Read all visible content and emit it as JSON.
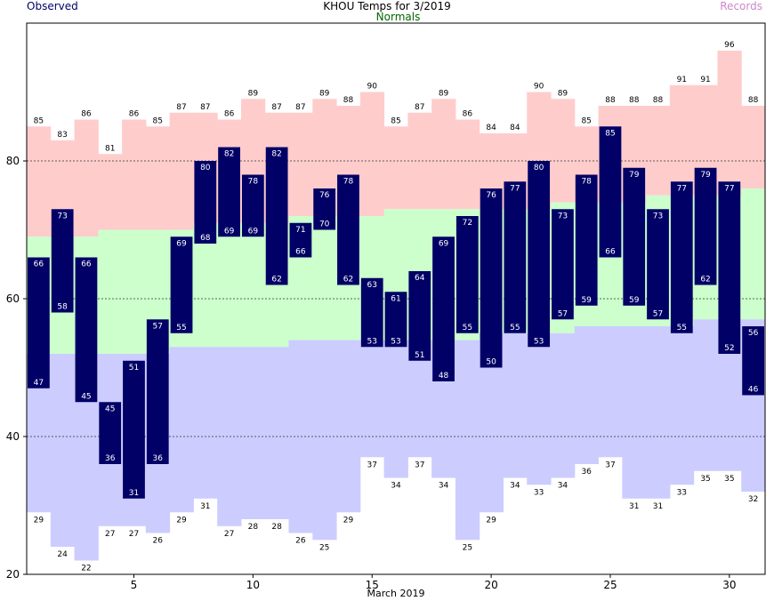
{
  "header": {
    "title": "KHOU Temps for 3/2019",
    "observed_label": "Observed",
    "normals_label": "Normals",
    "records_label": "Records"
  },
  "colors": {
    "record_band": "#ffcccc",
    "normal_band": "#ccffcc",
    "record_low_band": "#ccccff",
    "observed_bar": "#000066"
  },
  "chart_data": {
    "type": "bar",
    "title": "KHOU Temps for 3/2019",
    "xlabel": "March 2019",
    "ylabel": "",
    "x": [
      1,
      2,
      3,
      4,
      5,
      6,
      7,
      8,
      9,
      10,
      11,
      12,
      13,
      14,
      15,
      16,
      17,
      18,
      19,
      20,
      21,
      22,
      23,
      24,
      25,
      26,
      27,
      28,
      29,
      30,
      31
    ],
    "xlim": [
      1,
      31
    ],
    "ylim": [
      20,
      100
    ],
    "x_ticks": [
      5,
      10,
      15,
      20,
      25,
      30
    ],
    "y_ticks": [
      20,
      40,
      60,
      80
    ],
    "gridlines_y": [
      40,
      60,
      80
    ],
    "grid_style": "dashed",
    "series": [
      {
        "name": "Observed",
        "kind": "high",
        "values": [
          66,
          73,
          66,
          45,
          51,
          57,
          69,
          80,
          82,
          78,
          82,
          71,
          76,
          78,
          63,
          61,
          64,
          69,
          72,
          76,
          77,
          80,
          73,
          78,
          85,
          79,
          73,
          77,
          79,
          77,
          56
        ]
      },
      {
        "name": "Observed",
        "kind": "low",
        "values": [
          47,
          58,
          45,
          36,
          31,
          36,
          55,
          68,
          69,
          69,
          62,
          66,
          70,
          62,
          53,
          53,
          51,
          48,
          55,
          50,
          55,
          53,
          57,
          59,
          66,
          59,
          57,
          55,
          62,
          52,
          46
        ]
      },
      {
        "name": "Normals",
        "kind": "high",
        "values": [
          69,
          69,
          69,
          70,
          70,
          70,
          70,
          71,
          71,
          71,
          71,
          72,
          72,
          72,
          72,
          73,
          73,
          73,
          73,
          73,
          73,
          73,
          74,
          74,
          74,
          74,
          75,
          75,
          75,
          75,
          76
        ]
      },
      {
        "name": "Normals",
        "kind": "low",
        "values": [
          52,
          52,
          52,
          52,
          52,
          52,
          53,
          53,
          53,
          53,
          53,
          54,
          54,
          54,
          54,
          54,
          54,
          54,
          54,
          55,
          55,
          55,
          55,
          56,
          56,
          56,
          56,
          56,
          57,
          57,
          57
        ]
      },
      {
        "name": "Records",
        "kind": "high",
        "values": [
          85,
          83,
          86,
          81,
          86,
          85,
          87,
          87,
          86,
          89,
          87,
          87,
          89,
          88,
          90,
          85,
          87,
          89,
          86,
          84,
          84,
          90,
          89,
          85,
          88,
          88,
          88,
          91,
          91,
          96,
          88
        ]
      },
      {
        "name": "Records",
        "kind": "low",
        "values": [
          29,
          24,
          22,
          27,
          27,
          26,
          29,
          31,
          27,
          28,
          28,
          26,
          25,
          29,
          37,
          34,
          37,
          34,
          25,
          29,
          34,
          33,
          34,
          36,
          37,
          31,
          31,
          33,
          35,
          35,
          32
        ]
      }
    ]
  }
}
